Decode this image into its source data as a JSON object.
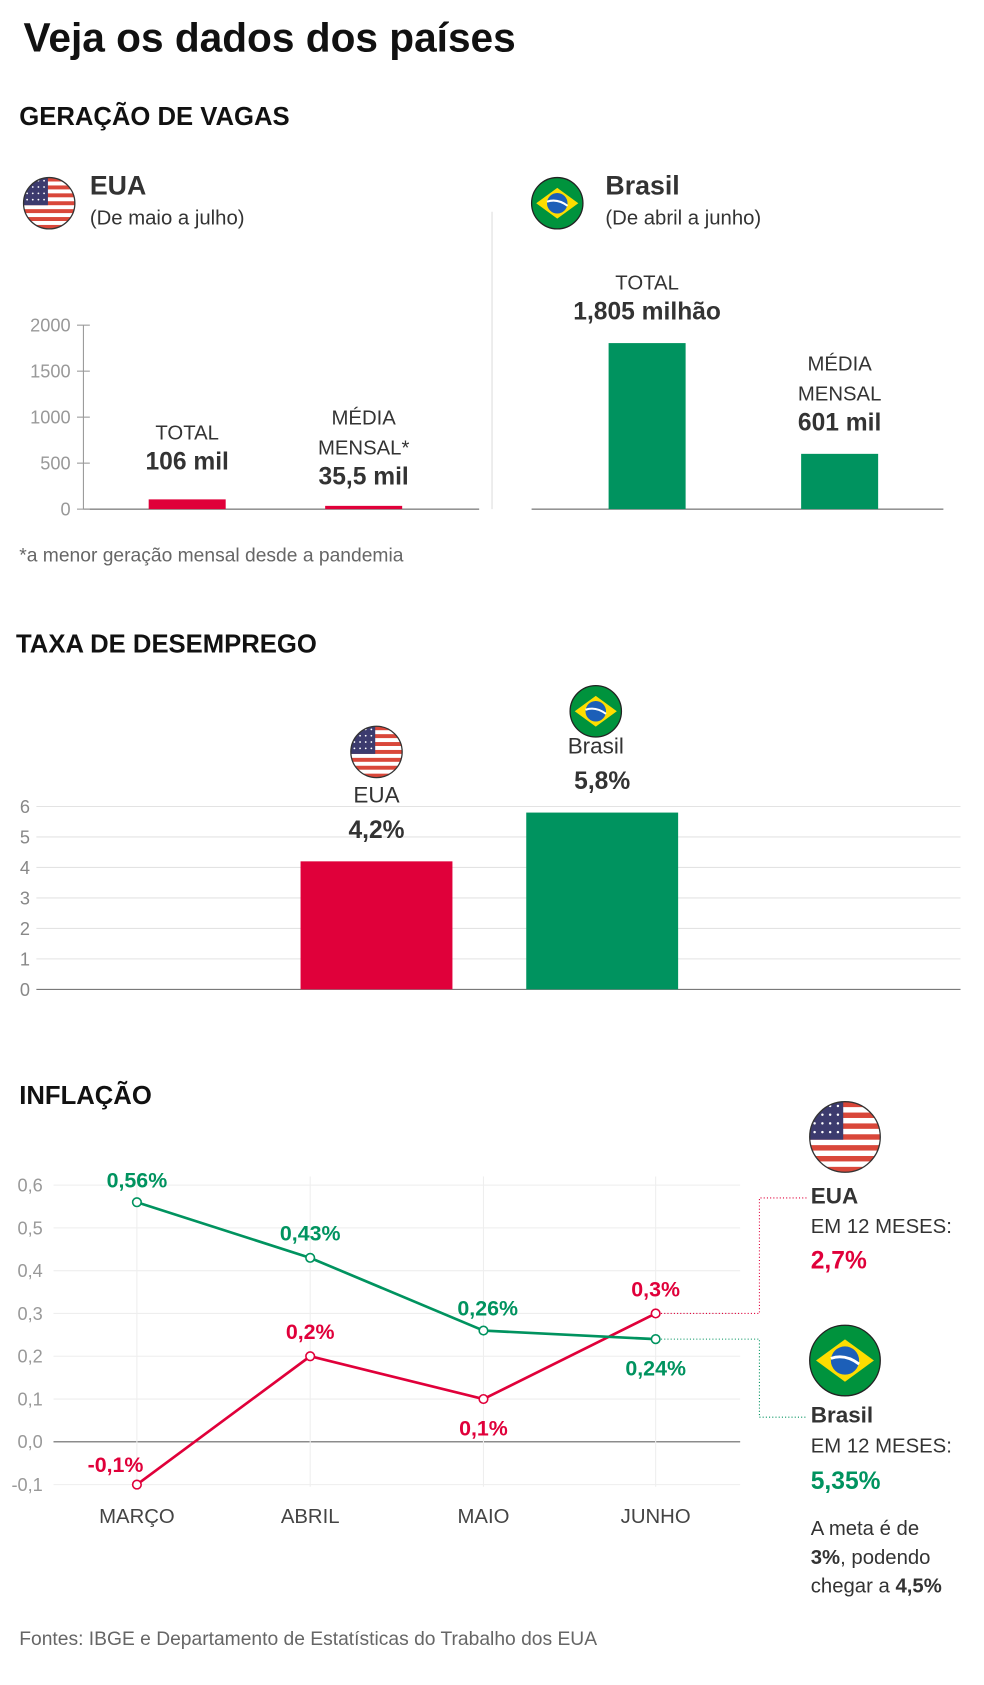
{
  "title": "Veja os dados dos países",
  "colors": {
    "eua": "#e0003a",
    "brasil": "#00935f",
    "text": "#333333",
    "axis": "#999999"
  },
  "vagas": {
    "section_title": "GERAÇÃO DE VAGAS",
    "eua": {
      "name": "EUA",
      "period": "(De maio a julho)",
      "flag": "us-flag-icon"
    },
    "brasil": {
      "name": "Brasil",
      "period": "(De abril a junho)",
      "flag": "brazil-flag-icon"
    },
    "footnote": "*a menor geração mensal desde a pandemia"
  },
  "desemprego": {
    "section_title": "TAXA DE DESEMPREGO"
  },
  "inflacao": {
    "section_title": "INFLAÇÃO",
    "eua": {
      "name": "EUA",
      "label": "EM 12 MESES:",
      "value": "2,7%"
    },
    "brasil": {
      "name": "Brasil",
      "label": "EM 12 MESES:",
      "value": "5,35%"
    },
    "meta": {
      "line1": "A meta é de",
      "bold1": "3%",
      "line2_rest": ", podendo",
      "line3": "chegar a ",
      "bold2": "4,5%"
    }
  },
  "footer": "Fontes: IBGE e Departamento de Estatísticas do Trabalho dos EUA",
  "chart_data": [
    {
      "type": "bar",
      "title": "EUA",
      "categories": [
        "TOTAL",
        "MÉDIA MENSAL*"
      ],
      "category_lines": [
        [
          "TOTAL"
        ],
        [
          "MÉDIA",
          "MENSAL*"
        ]
      ],
      "values": [
        106,
        35.5
      ],
      "value_labels": [
        "106 mil",
        "35,5 mil"
      ],
      "yticks": [
        0,
        500,
        1000,
        1500,
        2000
      ],
      "ytick_labels": [
        "0",
        "500",
        "1000",
        "1500",
        "2000"
      ],
      "ylim": [
        0,
        2000
      ],
      "color": "#e0003a"
    },
    {
      "type": "bar",
      "title": "Brasil",
      "categories": [
        "TOTAL",
        "MÉDIA MENSAL"
      ],
      "category_lines": [
        [
          "TOTAL"
        ],
        [
          "MÉDIA",
          "MENSAL"
        ]
      ],
      "values": [
        1805,
        601
      ],
      "value_labels": [
        "1,805 milhão",
        "601 mil"
      ],
      "ylim": [
        0,
        2000
      ],
      "color": "#00935f"
    },
    {
      "type": "bar",
      "categories": [
        "EUA",
        "Brasil"
      ],
      "values": [
        4.2,
        5.8
      ],
      "value_labels": [
        "4,2%",
        "5,8%"
      ],
      "colors": [
        "#e0003a",
        "#00935f"
      ],
      "yticks": [
        0,
        1,
        2,
        3,
        4,
        5,
        6
      ],
      "ytick_labels": [
        "0",
        "1",
        "2",
        "3",
        "4",
        "5",
        "6"
      ],
      "ylim": [
        0,
        6
      ],
      "grid": true
    },
    {
      "type": "line",
      "categories": [
        "MARÇO",
        "ABRIL",
        "MAIO",
        "JUNHO"
      ],
      "series": [
        {
          "name": "EUA",
          "values": [
            -0.1,
            0.2,
            0.1,
            0.3
          ],
          "labels": [
            "-0,1%",
            "0,2%",
            "0,1%",
            "0,3%"
          ],
          "color": "#e0003a"
        },
        {
          "name": "Brasil",
          "values": [
            0.56,
            0.43,
            0.26,
            0.24
          ],
          "labels": [
            "0,56%",
            "0,43%",
            "0,26%",
            "0,24%"
          ],
          "color": "#00935f"
        }
      ],
      "yticks": [
        -0.1,
        0,
        0.1,
        0.2,
        0.3,
        0.4,
        0.5,
        0.6
      ],
      "ytick_labels": [
        "-0,1",
        "0,0",
        "0,1",
        "0,2",
        "0,3",
        "0,4",
        "0,5",
        "0,6"
      ],
      "ylim": [
        -0.1,
        0.6
      ],
      "grid": true
    }
  ]
}
